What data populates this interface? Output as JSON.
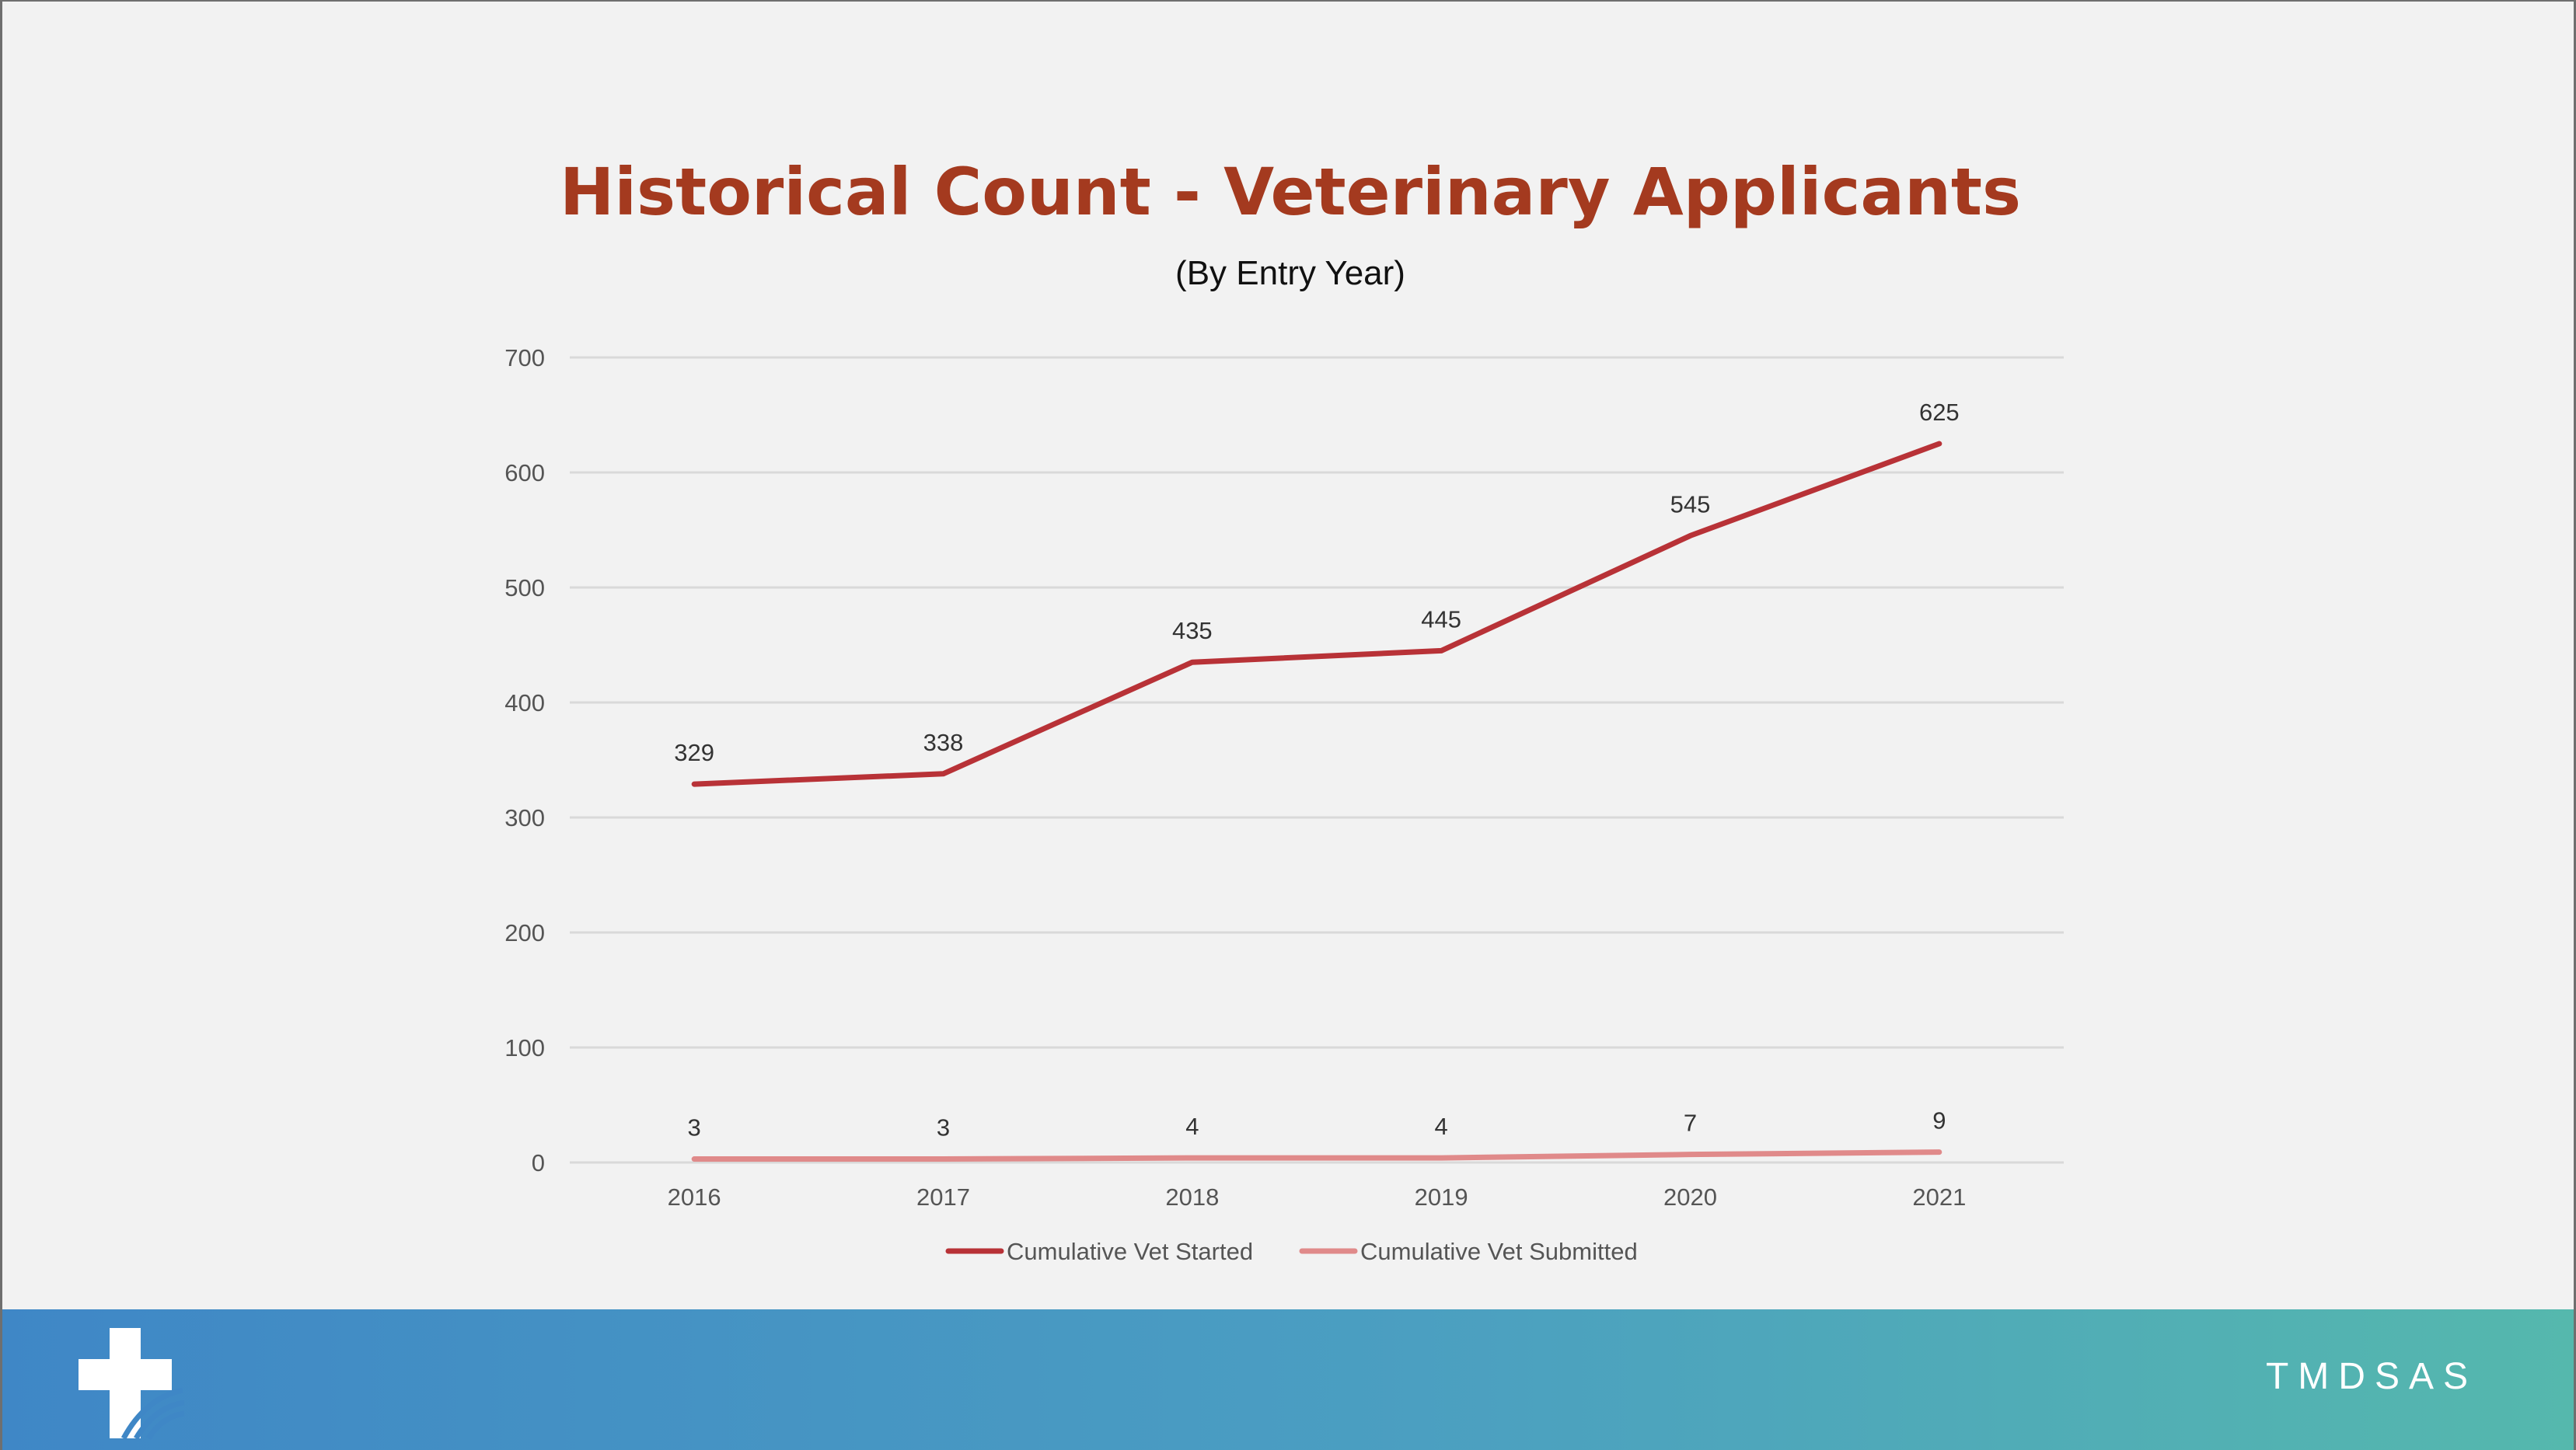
{
  "chart_data": {
    "type": "line",
    "title": "Historical Count - Veterinary Applicants",
    "subtitle": "(By Entry Year)",
    "categories": [
      "2016",
      "2017",
      "2018",
      "2019",
      "2020",
      "2021"
    ],
    "series": [
      {
        "name": "Cumulative Vet Started",
        "values": [
          329,
          338,
          435,
          445,
          545,
          625
        ],
        "color": "#b83237"
      },
      {
        "name": "Cumulative Vet Submitted",
        "values": [
          3,
          3,
          4,
          4,
          7,
          9
        ],
        "color": "#e08a8a"
      }
    ],
    "ylim": [
      0,
      700
    ],
    "yticks": [
      0,
      100,
      200,
      300,
      400,
      500,
      600,
      700
    ],
    "grid": true,
    "legend": "bottom",
    "data_labels": true,
    "gridline_color": "#d9d9d9"
  },
  "footer": {
    "brand": "TMDSAS",
    "logo_icon": "medical-cross-logo-icon"
  }
}
